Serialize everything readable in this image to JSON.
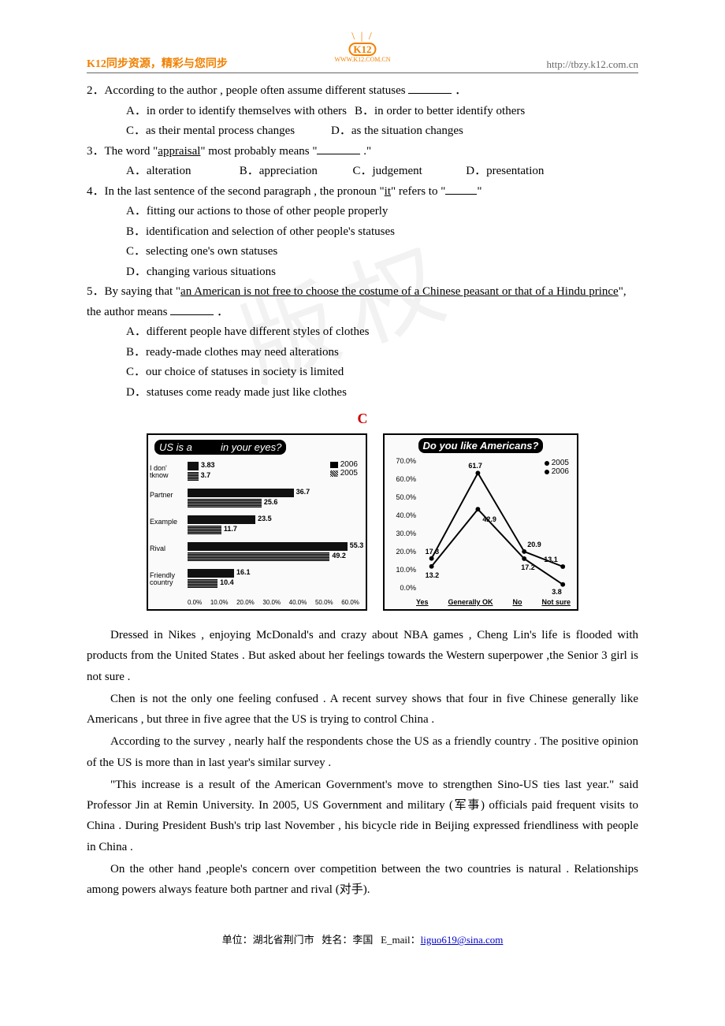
{
  "header": {
    "left": "K12同步资源，精彩与您同步",
    "right": "http://tbzy.k12.com.cn",
    "logo_text": "K12",
    "logo_url": "WWW.K12.COM.CN"
  },
  "q2": {
    "stem_a": "2．According to the author , people often assume different statuses ",
    "stem_b": " ．",
    "A": "A．in order to identify themselves with others",
    "B": "B．in order to better identify others",
    "C": "C．as their mental process changes",
    "D": "D．as the situation changes"
  },
  "q3": {
    "stem_a": "3．The word \"",
    "ul": "appraisal",
    "stem_b": "\" most probably means \"",
    "stem_c": " .\"",
    "A": "A．alteration",
    "B": "B．appreciation",
    "C": "C．judgement",
    "D": "D．presentation"
  },
  "q4": {
    "stem_a": "4．In the last sentence of the second paragraph , the pronoun \"",
    "ul": "it",
    "stem_b": "\" refers to \"",
    "stem_c": "\"",
    "A": "A．fitting our actions to those of other people properly",
    "B": "B．identification and selection of other people's statuses",
    "C": "C．selecting one's own statuses",
    "D": "D．changing various situations"
  },
  "q5": {
    "stem_a": "5．By saying that \"",
    "ul": "an American is not free to choose the costume of a Chinese peasant or that of a Hindu prince",
    "stem_b": "\", the author means ",
    "stem_c": " ．",
    "A": "A．different people have different styles of clothes",
    "B": "B．ready-made clothes may need alterations",
    "C": "C．our choice of statuses in society is limited",
    "D": "D．statuses come ready made just like clothes"
  },
  "sectionC": "C",
  "chart1": {
    "title_a": "US is a",
    "title_b": "in your eyes?",
    "legend": [
      "2006",
      "2005"
    ],
    "cats": [
      "I don' tknow",
      "Partner",
      "Example",
      "Rival",
      "Friendly country"
    ],
    "v2006": [
      3.83,
      36.7,
      23.5,
      55.3,
      16.1
    ],
    "v2005": [
      3.7,
      25.6,
      11.7,
      49.2,
      10.4
    ],
    "xticks": [
      "0.0%",
      "10.0%",
      "20.0%",
      "30.0%",
      "40.0%",
      "50.0%",
      "60.0%"
    ],
    "xmax": 60
  },
  "chart2": {
    "title": "Do you like Americans?",
    "legend": [
      "2005",
      "2006"
    ],
    "xcats": [
      "Yes",
      "Generally OK",
      "No",
      "Not sure"
    ],
    "yticks": [
      "70.0%",
      "60.0%",
      "50.0%",
      "40.0%",
      "30.0%",
      "20.0%",
      "10.0%",
      "0.0%"
    ],
    "s2005": [
      17.3,
      61.7,
      20.9,
      13.1
    ],
    "s2006": [
      13.2,
      42.9,
      17.2,
      3.8
    ],
    "ymax": 70
  },
  "passage": {
    "p1": "Dressed in Nikes , enjoying McDonald's and crazy about NBA games , Cheng Lin's life is flooded with products from the United States . But asked about her feelings towards the Western superpower ,the Senior 3 girl is not sure .",
    "p2": "Chen is not the only one feeling confused . A recent survey shows that four in five Chinese generally like Americans , but three in five agree that the US is trying to control China .",
    "p3": "According to the survey , nearly half the respondents chose the US as a friendly country . The positive opinion of the US is more than in last year's similar survey .",
    "p4": "\"This increase is a result of the American Government's move to strengthen Sino-US ties last year.\" said Professor Jin at Remin University. In 2005, US Government and military (军事) officials paid frequent visits to China . During President Bush's trip last November , his bicycle ride in Beijing expressed friendliness with people in China .",
    "p5": "On the other hand ,people's concern over competition between the two countries is natural . Relationships among powers always feature both partner and rival (对手)."
  },
  "footer": {
    "unit": "单位：湖北省荆门市",
    "name": "姓名：李国",
    "email_label": "E_mail：",
    "email": "liguo619@sina.com"
  },
  "watermark": "版权"
}
